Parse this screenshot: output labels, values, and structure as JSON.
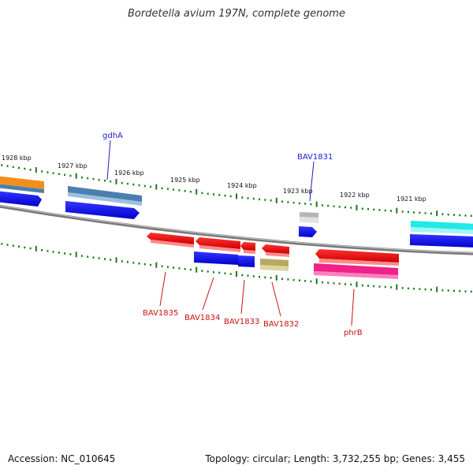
{
  "title": "Bordetella avium 197N, complete genome",
  "footer": {
    "accession": "Accession: NC_010645",
    "topology": "Topology: circular; Length: 3,732,255 bp; Genes: 3,455"
  },
  "scale_labels": [
    "1928 kbp",
    "1927 kbp",
    "1926 kbp",
    "1925 kbp",
    "1924 kbp",
    "1923 kbp",
    "1922 kbp",
    "1921 kbp"
  ],
  "genes": [
    {
      "name": "gdhA",
      "strand": "+",
      "color": "#4a7fb0"
    },
    {
      "name": "BAV1831",
      "strand": "+",
      "color": "#b5b5b5"
    },
    {
      "name": "BAV1835",
      "strand": "-",
      "color": "#ee1111"
    },
    {
      "name": "BAV1834",
      "strand": "-",
      "color": "#ee1111"
    },
    {
      "name": "BAV1833",
      "strand": "-",
      "color": "#ee1111"
    },
    {
      "name": "BAV1832",
      "strand": "-",
      "color": "#b8a860"
    },
    {
      "name": "phrB",
      "strand": "-",
      "color": "#ee2288"
    }
  ],
  "colors": {
    "backbone": "#808080",
    "ticks": "#1a7a1a",
    "cds_forward": "#1515ee",
    "cds_reverse": "#1515ee",
    "orange": "#f0901a",
    "cyan": "#22e8e8"
  }
}
